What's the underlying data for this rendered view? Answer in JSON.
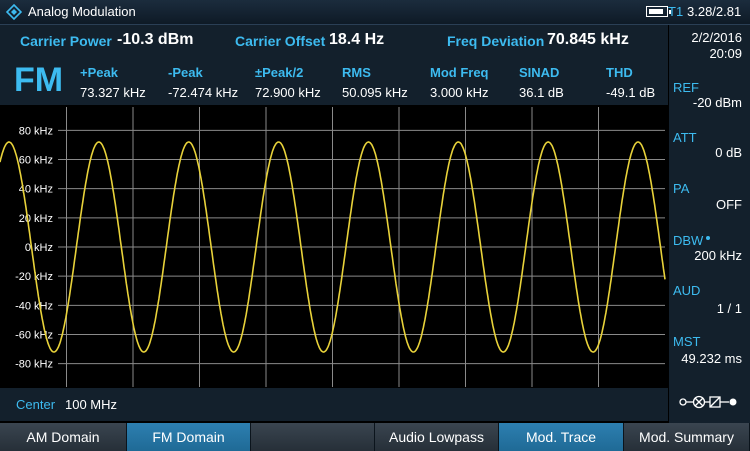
{
  "title_bar": {
    "title": "Analog Modulation",
    "trace_indicator": "T1",
    "version": "3.28/2.81",
    "battery_level": 0.85
  },
  "measurements": {
    "carrier_power": {
      "label": "Carrier Power",
      "value": "-10.3 dBm"
    },
    "carrier_offset": {
      "label": "Carrier Offset",
      "value": "18.4 Hz"
    },
    "freq_deviation": {
      "label": "Freq Deviation",
      "value": "70.845 kHz"
    },
    "mode": "FM",
    "columns": [
      {
        "label": "+Peak",
        "value": "73.327 kHz"
      },
      {
        "label": "-Peak",
        "value": "-72.474 kHz"
      },
      {
        "label": "±Peak/2",
        "value": "72.900 kHz"
      },
      {
        "label": "RMS",
        "value": "50.095 kHz"
      },
      {
        "label": "Mod Freq",
        "value": "3.000 kHz"
      },
      {
        "label": "SINAD",
        "value": "36.1 dB"
      },
      {
        "label": "THD",
        "value": "-49.1 dB"
      }
    ]
  },
  "sidebar": {
    "date": "2/2/2016",
    "time": "20:09",
    "params": [
      {
        "label": "REF",
        "value": "-20 dBm"
      },
      {
        "label": "ATT",
        "value": "0 dB"
      },
      {
        "label": "PA",
        "value": "OFF"
      },
      {
        "label": "DBW",
        "value": "200 kHz"
      },
      {
        "label": "AUD",
        "value": "1 / 1"
      },
      {
        "label": "MST",
        "value": "49.232 ms"
      }
    ]
  },
  "plot": {
    "y_ticks": [
      "80 kHz",
      "60 kHz",
      "40 kHz",
      "20 kHz",
      "0 kHz",
      "-20 kHz",
      "-40 kHz",
      "-60 kHz",
      "-80 kHz"
    ],
    "trace_color": "#e8d23a",
    "amplitude_khz": 72,
    "y_range_khz": [
      -96,
      96
    ],
    "cycles_visible": 7.4,
    "phase_start": 0.15
  },
  "center": {
    "label": "Center",
    "value": "100 MHz"
  },
  "softkeys": [
    {
      "label": "AM Domain",
      "active": false
    },
    {
      "label": "FM Domain",
      "active": true
    },
    {
      "label": "",
      "active": false
    },
    {
      "label": "Audio Lowpass",
      "active": false
    },
    {
      "label": "Mod. Trace",
      "active": true
    },
    {
      "label": "Mod. Summary",
      "active": false
    }
  ],
  "colors": {
    "accent": "#3dbbf0",
    "panel": "#13202c",
    "active_key": "#1f6a96"
  }
}
